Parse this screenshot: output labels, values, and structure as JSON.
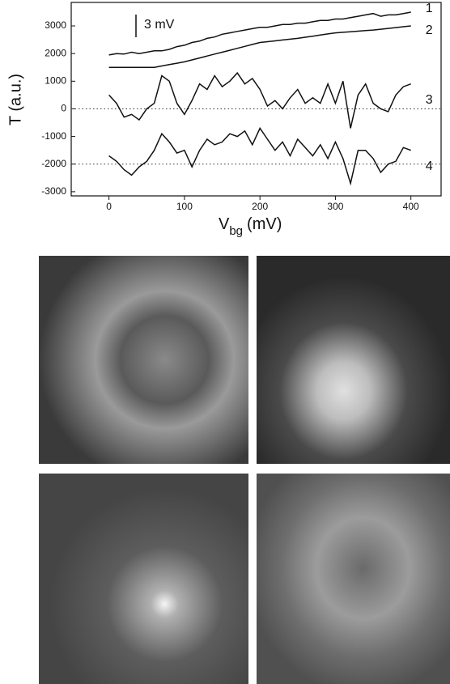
{
  "chart_data": {
    "type": "line",
    "x": [
      0,
      10,
      20,
      30,
      40,
      50,
      60,
      70,
      80,
      90,
      100,
      110,
      120,
      130,
      140,
      150,
      160,
      170,
      180,
      190,
      200,
      210,
      220,
      230,
      240,
      250,
      260,
      270,
      280,
      290,
      300,
      310,
      320,
      330,
      340,
      350,
      360,
      370,
      380,
      390,
      400
    ],
    "series": [
      {
        "name": "1",
        "color": "#111111",
        "values": [
          1950,
          2000,
          1980,
          2050,
          2000,
          2050,
          2100,
          2100,
          2150,
          2250,
          2300,
          2400,
          2450,
          2550,
          2600,
          2700,
          2750,
          2800,
          2850,
          2900,
          2950,
          2950,
          3000,
          3050,
          3050,
          3100,
          3100,
          3150,
          3200,
          3200,
          3250,
          3250,
          3300,
          3350,
          3400,
          3450,
          3350,
          3400,
          3400,
          3450,
          3500
        ]
      },
      {
        "name": "2",
        "color": "#111111",
        "values": [
          1500,
          1500,
          1500,
          1500,
          1500,
          1500,
          1500,
          1550,
          1600,
          1650,
          1700,
          1770,
          1840,
          1910,
          1980,
          2050,
          2120,
          2190,
          2260,
          2330,
          2400,
          2430,
          2460,
          2490,
          2520,
          2550,
          2590,
          2630,
          2670,
          2710,
          2750,
          2770,
          2790,
          2810,
          2830,
          2850,
          2880,
          2910,
          2940,
          2970,
          3000
        ]
      },
      {
        "name": "3",
        "color": "#111111",
        "values": [
          500,
          200,
          -300,
          -200,
          -400,
          0,
          200,
          1200,
          1000,
          200,
          -200,
          300,
          900,
          700,
          1200,
          800,
          1000,
          1300,
          900,
          1100,
          700,
          100,
          300,
          0,
          400,
          700,
          200,
          400,
          200,
          900,
          200,
          1000,
          -700,
          500,
          900,
          200,
          0,
          -100,
          500,
          800,
          900
        ]
      },
      {
        "name": "4",
        "color": "#111111",
        "values": [
          -1700,
          -1900,
          -2200,
          -2400,
          -2100,
          -1900,
          -1500,
          -900,
          -1200,
          -1600,
          -1500,
          -2100,
          -1500,
          -1100,
          -1300,
          -1200,
          -900,
          -1000,
          -800,
          -1300,
          -700,
          -1100,
          -1500,
          -1200,
          -1700,
          -1100,
          -1400,
          -1700,
          -1300,
          -1800,
          -1200,
          -1800,
          -2700,
          -1500,
          -1500,
          -1800,
          -2300,
          -2000,
          -1900,
          -1400,
          -1500
        ]
      }
    ],
    "hlines": [
      0,
      -2000
    ],
    "annotation": "3 mV",
    "ylabel": "T (a.u.)",
    "xlabel": "V",
    "xlabel_sub": "bg",
    "xlabel_unit": "(mV)",
    "xlim": [
      -50,
      440
    ],
    "ylim": [
      -3150,
      3850
    ],
    "xticks": [
      0,
      100,
      200,
      300,
      400
    ],
    "yticks": [
      -3000,
      -2000,
      -1000,
      0,
      1000,
      2000,
      3000
    ]
  }
}
